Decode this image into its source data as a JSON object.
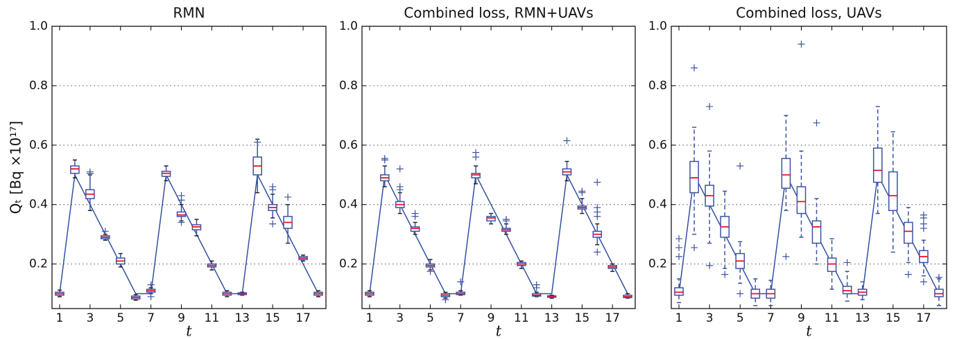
{
  "chart_data": [
    {
      "type": "box",
      "title": "RMN",
      "xlabel": "t",
      "ylabel": "Qₜ [Bq ×10¹⁷]",
      "x": [
        1,
        2,
        3,
        4,
        5,
        6,
        7,
        8,
        9,
        10,
        11,
        12,
        13,
        14,
        15,
        16,
        17,
        18
      ],
      "xlim": [
        0.5,
        18.5
      ],
      "xticks": [
        1,
        3,
        5,
        7,
        9,
        11,
        13,
        15,
        17
      ],
      "ylim": [
        0.05,
        1.0
      ],
      "yticks": [
        0.2,
        0.4,
        0.6,
        0.8,
        {
          "value": 1.0,
          "label": "1.0"
        }
      ],
      "grid": true,
      "whisker_style": "solid",
      "line": {
        "color": "#3050a0",
        "values": [
          0.1,
          0.5,
          0.4,
          0.3,
          0.2,
          0.1,
          0.1,
          0.5,
          0.4,
          0.3,
          0.2,
          0.1,
          0.1,
          0.5,
          0.4,
          0.3,
          0.2,
          0.1
        ]
      },
      "boxes": {
        "color": "#3a52a3",
        "median_color": "#e8112d",
        "median": [
          0.1,
          0.52,
          0.435,
          0.29,
          0.21,
          0.087,
          0.11,
          0.505,
          0.365,
          0.325,
          0.195,
          0.1,
          0.1,
          0.53,
          0.39,
          0.34,
          0.22,
          0.1
        ],
        "q1": [
          0.095,
          0.505,
          0.42,
          0.285,
          0.2,
          0.082,
          0.105,
          0.495,
          0.36,
          0.315,
          0.19,
          0.095,
          0.097,
          0.5,
          0.38,
          0.32,
          0.215,
          0.095
        ],
        "q3": [
          0.105,
          0.53,
          0.45,
          0.295,
          0.22,
          0.092,
          0.115,
          0.512,
          0.375,
          0.332,
          0.2,
          0.105,
          0.103,
          0.56,
          0.4,
          0.36,
          0.225,
          0.105
        ],
        "whisker_low": [
          0.09,
          0.49,
          0.38,
          0.28,
          0.19,
          0.078,
          0.1,
          0.48,
          0.345,
          0.295,
          0.18,
          0.09,
          0.095,
          0.44,
          0.355,
          0.27,
          0.21,
          0.09
        ],
        "whisker_high": [
          0.112,
          0.55,
          0.5,
          0.3,
          0.235,
          0.097,
          0.12,
          0.53,
          0.4,
          0.35,
          0.21,
          0.11,
          0.105,
          0.62,
          0.435,
          0.4,
          0.23,
          0.11
        ],
        "outliers": [
          [],
          [],
          [
            0.505,
            0.51
          ],
          [
            0.31
          ],
          [],
          [],
          [
            0.13,
            0.09
          ],
          [],
          [
            0.43,
            0.415,
            0.34
          ],
          [],
          [],
          [],
          [],
          [
            0.61
          ],
          [
            0.45,
            0.46,
            0.335
          ],
          [
            0.425
          ],
          [],
          []
        ]
      }
    },
    {
      "type": "box",
      "title": "Combined loss, RMN+UAVs",
      "xlabel": "t",
      "x": [
        1,
        2,
        3,
        4,
        5,
        6,
        7,
        8,
        9,
        10,
        11,
        12,
        13,
        14,
        15,
        16,
        17,
        18
      ],
      "xlim": [
        0.5,
        18.5
      ],
      "xticks": [
        1,
        3,
        5,
        7,
        9,
        11,
        13,
        15,
        17
      ],
      "ylim": [
        0.05,
        1.0
      ],
      "yticks": [
        0.2,
        0.4,
        0.6,
        0.8,
        {
          "value": 1.0,
          "label": "1.0"
        }
      ],
      "grid": true,
      "whisker_style": "solid",
      "line": {
        "color": "#3050a0",
        "values": [
          0.1,
          0.5,
          0.4,
          0.3,
          0.2,
          0.1,
          0.1,
          0.5,
          0.4,
          0.3,
          0.2,
          0.1,
          0.1,
          0.5,
          0.4,
          0.3,
          0.2,
          0.1
        ]
      },
      "boxes": {
        "color": "#3a52a3",
        "median_color": "#e8112d",
        "median": [
          0.1,
          0.49,
          0.4,
          0.32,
          0.195,
          0.095,
          0.1,
          0.5,
          0.355,
          0.315,
          0.2,
          0.095,
          0.09,
          0.51,
          0.39,
          0.3,
          0.19,
          0.09
        ],
        "q1": [
          0.095,
          0.48,
          0.39,
          0.31,
          0.19,
          0.09,
          0.097,
          0.49,
          0.345,
          0.31,
          0.195,
          0.092,
          0.088,
          0.5,
          0.385,
          0.29,
          0.185,
          0.087
        ],
        "q3": [
          0.105,
          0.5,
          0.41,
          0.325,
          0.2,
          0.1,
          0.105,
          0.505,
          0.36,
          0.32,
          0.205,
          0.1,
          0.093,
          0.52,
          0.395,
          0.31,
          0.195,
          0.095
        ],
        "whisker_low": [
          0.09,
          0.46,
          0.37,
          0.3,
          0.18,
          0.085,
          0.095,
          0.47,
          0.335,
          0.3,
          0.185,
          0.09,
          0.085,
          0.48,
          0.37,
          0.265,
          0.175,
          0.085
        ],
        "whisker_high": [
          0.11,
          0.53,
          0.44,
          0.34,
          0.215,
          0.105,
          0.11,
          0.53,
          0.37,
          0.335,
          0.21,
          0.105,
          0.095,
          0.545,
          0.42,
          0.335,
          0.2,
          0.1
        ],
        "outliers": [
          [],
          [
            0.55,
            0.555
          ],
          [
            0.52,
            0.46,
            0.45
          ],
          [
            0.36,
            0.37
          ],
          [
            0.175
          ],
          [
            0.08
          ],
          [
            0.14
          ],
          [
            0.56,
            0.575
          ],
          [],
          [
            0.345,
            0.35
          ],
          [],
          [
            0.13,
            0.12
          ],
          [],
          [
            0.615
          ],
          [
            0.44,
            0.445
          ],
          [
            0.475,
            0.39,
            0.375,
            0.36,
            0.24
          ],
          [],
          []
        ]
      }
    },
    {
      "type": "box",
      "title": "Combined loss, UAVs",
      "xlabel": "t",
      "x": [
        1,
        2,
        3,
        4,
        5,
        6,
        7,
        8,
        9,
        10,
        11,
        12,
        13,
        14,
        15,
        16,
        17,
        18
      ],
      "xlim": [
        0.5,
        18.5
      ],
      "xticks": [
        1,
        3,
        5,
        7,
        9,
        11,
        13,
        15,
        17
      ],
      "ylim": [
        0.05,
        1.0
      ],
      "yticks": [
        0.2,
        0.4,
        0.6,
        0.8,
        {
          "value": 1.0,
          "label": "1.0"
        }
      ],
      "grid": true,
      "whisker_style": "dashed",
      "line": {
        "color": "#3050a0",
        "values": [
          0.1,
          0.5,
          0.4,
          0.3,
          0.2,
          0.1,
          0.1,
          0.5,
          0.4,
          0.3,
          0.2,
          0.1,
          0.1,
          0.5,
          0.4,
          0.3,
          0.2,
          0.1
        ]
      },
      "boxes": {
        "color": "#3a52a3",
        "median_color": "#e8112d",
        "median": [
          0.105,
          0.49,
          0.43,
          0.325,
          0.21,
          0.1,
          0.1,
          0.5,
          0.41,
          0.325,
          0.2,
          0.11,
          0.105,
          0.515,
          0.43,
          0.31,
          0.225,
          0.1
        ],
        "q1": [
          0.095,
          0.44,
          0.395,
          0.29,
          0.185,
          0.085,
          0.085,
          0.455,
          0.37,
          0.27,
          0.175,
          0.1,
          0.095,
          0.475,
          0.38,
          0.27,
          0.205,
          0.09
        ],
        "q3": [
          0.12,
          0.545,
          0.465,
          0.36,
          0.235,
          0.115,
          0.115,
          0.555,
          0.46,
          0.345,
          0.22,
          0.125,
          0.115,
          0.59,
          0.51,
          0.34,
          0.245,
          0.115
        ],
        "whisker_low": [
          0.07,
          0.3,
          0.27,
          0.185,
          0.135,
          0.06,
          0.06,
          0.38,
          0.29,
          0.2,
          0.115,
          0.075,
          0.08,
          0.37,
          0.24,
          0.205,
          0.16,
          0.06
        ],
        "whisker_high": [
          0.15,
          0.66,
          0.58,
          0.445,
          0.275,
          0.15,
          0.145,
          0.7,
          0.58,
          0.42,
          0.285,
          0.175,
          0.14,
          0.73,
          0.645,
          0.39,
          0.28,
          0.15
        ],
        "outliers": [
          [
            0.285,
            0.255,
            0.225
          ],
          [
            0.86,
            0.255
          ],
          [
            0.73,
            0.195
          ],
          [
            0.165
          ],
          [
            0.53,
            0.1
          ],
          [],
          [],
          [
            0.225
          ],
          [
            0.94
          ],
          [
            0.675
          ],
          [],
          [
            0.205
          ],
          [],
          [],
          [],
          [
            0.165
          ],
          [
            0.365,
            0.355,
            0.335,
            0.32,
            0.14
          ],
          [
            0.155
          ]
        ]
      }
    }
  ]
}
